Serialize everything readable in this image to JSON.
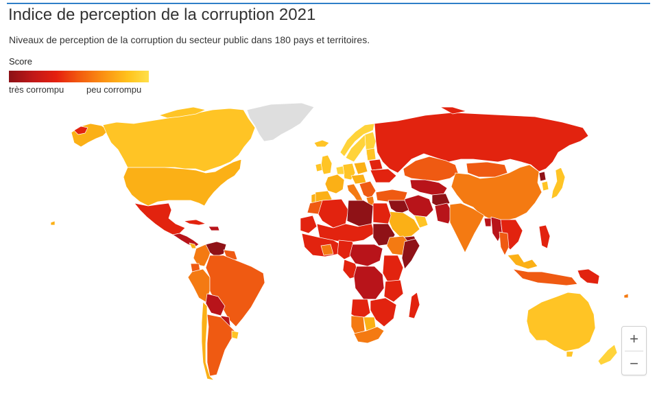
{
  "title": "Indice de perception de la corruption 2021",
  "subtitle": "Niveaux de perception de la corruption du secteur public dans 180 pays et territoires.",
  "legend": {
    "title": "Score",
    "low_label": "très corrompu",
    "high_label": "peu corrompu",
    "colors": [
      "#8c1016",
      "#c21818",
      "#e5200f",
      "#f25a0f",
      "#fb9213",
      "#ffc21c",
      "#ffe04a"
    ]
  },
  "zoom": {
    "in_label": "+",
    "out_label": "−"
  },
  "map_colors": {
    "no_data": "#dedede",
    "very_high": "#ffc425",
    "high": "#ffd33a",
    "upper_mid": "#fbb016",
    "mid": "#f47a12",
    "lower_mid": "#ef5a12",
    "low": "#e2230f",
    "very_low": "#b8141a",
    "lowest": "#8f1217"
  }
}
